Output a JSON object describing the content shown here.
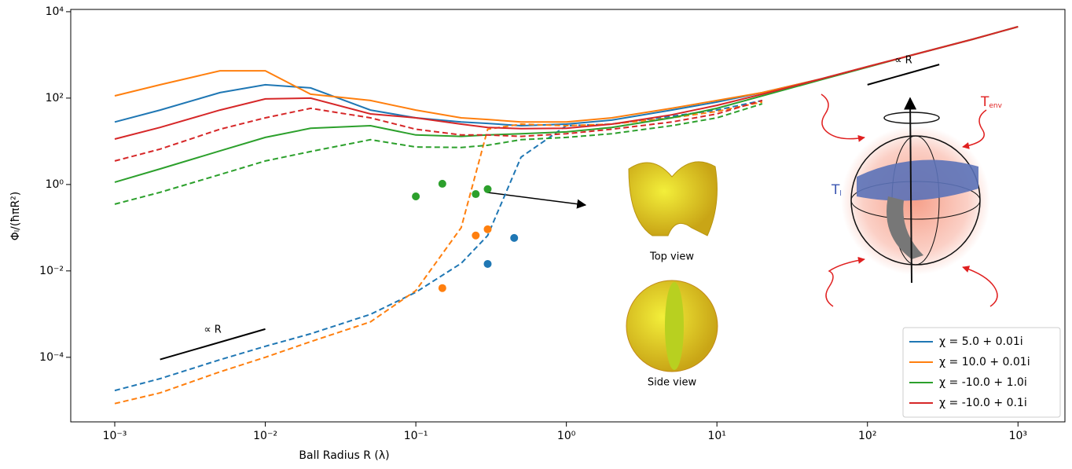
{
  "chart_data": {
    "type": "line",
    "xlabel": "Ball Radius R (λ)",
    "ylabel": "Φₗ/(ħπR²)",
    "xscale": "log",
    "yscale": "log",
    "xlim": [
      0.00051,
      2050
    ],
    "ylim": [
      3.2e-06,
      11300
    ],
    "xticks": [
      {
        "value": 0.001,
        "label": "10⁻³"
      },
      {
        "value": 0.01,
        "label": "10⁻²"
      },
      {
        "value": 0.1,
        "label": "10⁻¹"
      },
      {
        "value": 1,
        "label": "10⁰"
      },
      {
        "value": 10,
        "label": "10¹"
      },
      {
        "value": 100,
        "label": "10²"
      },
      {
        "value": 1000,
        "label": "10³"
      }
    ],
    "yticks": [
      {
        "value": 0.0001,
        "label": "10⁻⁴"
      },
      {
        "value": 0.01,
        "label": "10⁻²"
      },
      {
        "value": 1,
        "label": "10⁰"
      },
      {
        "value": 100,
        "label": "10²"
      },
      {
        "value": 10000,
        "label": "10⁴"
      }
    ],
    "legend": "lower right",
    "x": [
      0.001,
      0.002,
      0.005,
      0.01,
      0.02,
      0.05,
      0.1,
      0.2,
      0.3,
      0.5,
      1,
      2,
      5,
      10,
      20,
      50,
      100,
      200,
      500,
      1000
    ],
    "series": [
      {
        "name": "χ = 5.0 + 0.01i",
        "color": "#1f77b4",
        "values": [
          28,
          53,
          134,
          204,
          172,
          53,
          35,
          28,
          26,
          23,
          25,
          31,
          53,
          81,
          134,
          282,
          533,
          1000,
          2300,
          4500
        ],
        "dashed": [
          1.7e-05,
          3.2e-05,
          8.8e-05,
          0.00018,
          0.00035,
          0.00099,
          0.0032,
          0.015,
          0.066,
          4.3,
          23,
          25,
          38,
          53,
          88,
          null,
          null,
          null,
          null,
          null
        ],
        "scatter_x": [
          0.3,
          0.45
        ],
        "scatter_y": [
          0.0145,
          0.058
        ]
      },
      {
        "name": "χ = 10.0 + 0.01i",
        "color": "#ff7f0e",
        "values": [
          113,
          204,
          430,
          430,
          123,
          88,
          53,
          35,
          32,
          28,
          28,
          35,
          58,
          88,
          134,
          282,
          533,
          1000,
          2300,
          4500
        ],
        "dashed": [
          8.5e-06,
          1.5e-05,
          4.6e-05,
          0.0001,
          0.00023,
          0.00066,
          0.0035,
          0.1,
          19,
          25,
          23,
          25,
          35,
          49,
          81,
          null,
          null,
          null,
          null,
          null
        ],
        "scatter_x": [
          0.15,
          0.25,
          0.3
        ],
        "scatter_y": [
          0.004,
          0.066,
          0.092
        ]
      },
      {
        "name": "χ = -10.0 + 1.0i",
        "color": "#2ca02c",
        "values": [
          1.13,
          2.3,
          6,
          12.3,
          20,
          23,
          14,
          13,
          14,
          15,
          16.5,
          21,
          35,
          58,
          113,
          270,
          520,
          1000,
          2300,
          4500
        ],
        "dashed": [
          0.35,
          0.66,
          1.7,
          3.5,
          5.8,
          10.9,
          7.4,
          7.2,
          8.1,
          10.9,
          12.3,
          15,
          23,
          35,
          74,
          null,
          null,
          null,
          null,
          null
        ],
        "scatter_x": [
          0.1,
          0.15,
          0.25,
          0.3
        ],
        "scatter_y": [
          0.53,
          1.04,
          0.6,
          0.78
        ]
      },
      {
        "name": "χ = -10.0 + 0.1i",
        "color": "#d62728",
        "values": [
          11.3,
          21,
          53,
          96,
          100,
          43,
          35,
          25,
          21,
          19.6,
          20,
          25,
          41,
          68,
          123,
          282,
          533,
          1000,
          2300,
          4500
        ],
        "dashed": [
          3.5,
          6.6,
          19,
          35,
          58,
          35,
          19,
          14,
          14,
          13,
          15,
          19,
          28,
          43,
          88,
          null,
          null,
          null,
          null,
          null
        ]
      }
    ],
    "annotations": [
      {
        "text": "∝ R",
        "x": [
          0.002,
          0.01
        ],
        "y": [
          8.9e-05,
          0.00045
        ]
      },
      {
        "text": "∝ R",
        "x": [
          100,
          300
        ],
        "y": [
          204,
          600
        ]
      }
    ],
    "insets": {
      "top_view": "Top view",
      "side_view": "Side view",
      "t_env": {
        "text": "T",
        "subscript": "env"
      },
      "t_l": {
        "text": "T",
        "subscript": "l"
      }
    }
  }
}
